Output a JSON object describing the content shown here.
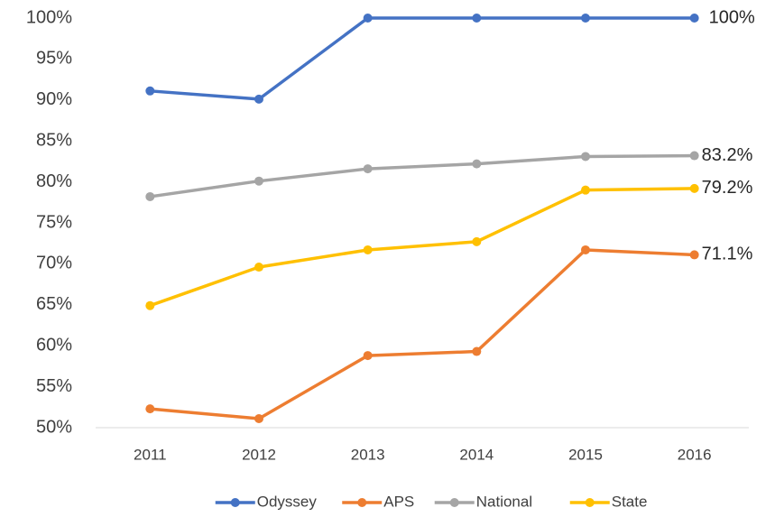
{
  "chart_data": {
    "type": "line",
    "categories": [
      "2011",
      "2012",
      "2013",
      "2014",
      "2015",
      "2016"
    ],
    "series": [
      {
        "name": "Odyssey",
        "color": "#4472c4",
        "values": [
          91.1,
          90.1,
          100,
          100,
          100,
          100
        ],
        "value_labels": [
          null,
          null,
          null,
          null,
          null,
          "100%"
        ]
      },
      {
        "name": "APS",
        "color": "#ed7d31",
        "values": [
          52.3,
          51.1,
          58.8,
          59.3,
          71.7,
          71.1
        ],
        "value_labels": [
          null,
          null,
          null,
          null,
          null,
          "71.1%"
        ]
      },
      {
        "name": "National",
        "color": "#a5a5a5",
        "values": [
          78.2,
          80.1,
          81.6,
          82.2,
          83.1,
          83.2
        ],
        "value_labels": [
          null,
          null,
          null,
          null,
          null,
          "83.2%"
        ]
      },
      {
        "name": "State",
        "color": "#ffc000",
        "values": [
          64.9,
          69.6,
          71.7,
          72.7,
          79.0,
          79.2
        ],
        "value_labels": [
          null,
          null,
          null,
          null,
          null,
          "79.2%"
        ]
      }
    ],
    "ylim": [
      50,
      100
    ],
    "yticks": [
      {
        "value": 50,
        "label": "50%"
      },
      {
        "value": 55,
        "label": "55%"
      },
      {
        "value": 60,
        "label": "60%"
      },
      {
        "value": 65,
        "label": "65%"
      },
      {
        "value": 70,
        "label": "70%"
      },
      {
        "value": 75,
        "label": "75%"
      },
      {
        "value": 80,
        "label": "80%"
      },
      {
        "value": 85,
        "label": "85%"
      },
      {
        "value": 90,
        "label": "90%"
      },
      {
        "value": 95,
        "label": "95%"
      },
      {
        "value": 100,
        "label": "100%"
      }
    ],
    "grid": false,
    "legend": "bottom"
  }
}
